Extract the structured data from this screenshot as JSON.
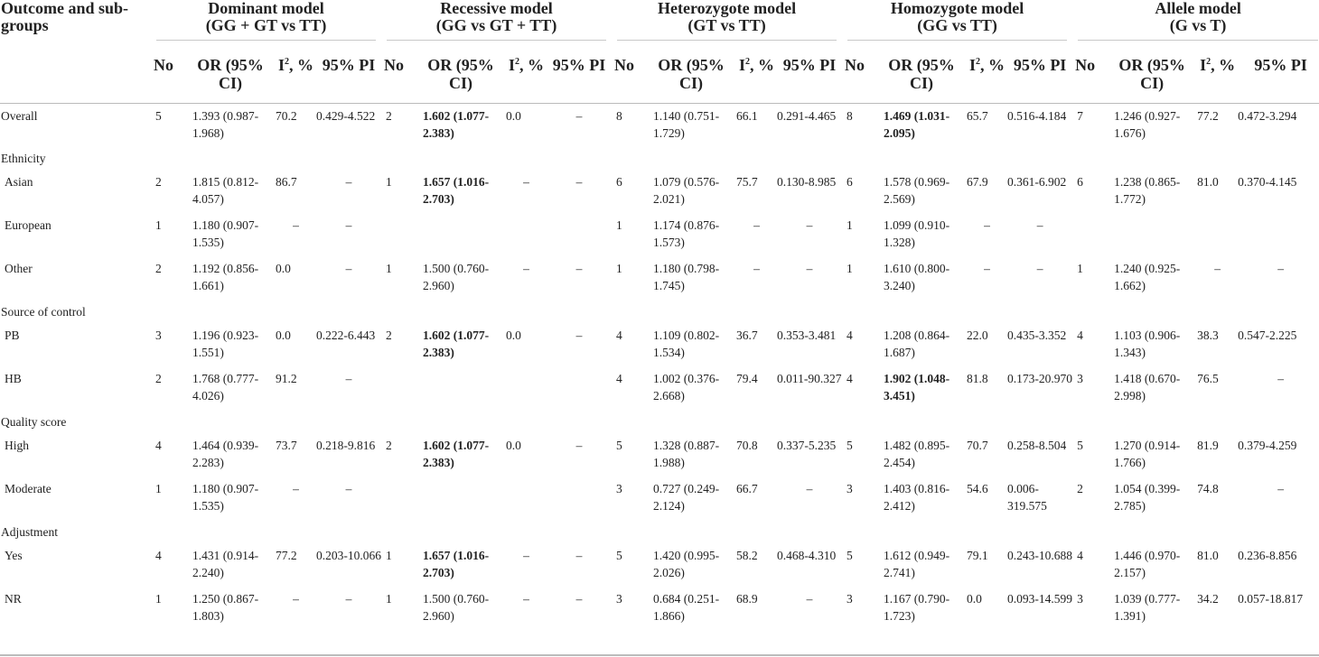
{
  "header": {
    "outcome_label": "Outcome and sub-groups",
    "models": [
      {
        "name": "Dominant model",
        "comparison": "(GG + GT vs TT)"
      },
      {
        "name": "Recessive model",
        "comparison": "(GG vs GT + TT)"
      },
      {
        "name": "Heterozygote model",
        "comparison": "(GT vs TT)"
      },
      {
        "name": "Homozygote model",
        "comparison": "(GG vs TT)"
      },
      {
        "name": "Allele model",
        "comparison": "(G vs T)"
      }
    ],
    "cols": {
      "no": "No",
      "or": "OR (95% CI)",
      "i2": "I",
      "i2_sup": "2",
      "i2_unit": ", %",
      "pi": "95% PI"
    }
  },
  "groups": [
    {
      "name": "Overall",
      "rows": [
        {
          "label": "Overall",
          "cells": [
            {
              "no": "5",
              "or": "1.393 (0.987-1.968)",
              "i2": "70.2",
              "pi": "0.429-4.522"
            },
            {
              "no": "2",
              "or": "1.602 (1.077-2.383)",
              "bold": true,
              "i2": "0.0",
              "pi": "–"
            },
            {
              "no": "8",
              "or": "1.140 (0.751-1.729)",
              "i2": "66.1",
              "pi": "0.291-4.465"
            },
            {
              "no": "8",
              "or": "1.469 (1.031-2.095)",
              "bold": true,
              "i2": "65.7",
              "pi": "0.516-4.184"
            },
            {
              "no": "7",
              "or": "1.246 (0.927-1.676)",
              "i2": "77.2",
              "pi": "0.472-3.294"
            }
          ]
        }
      ]
    },
    {
      "name": "Ethnicity",
      "rows": [
        {
          "label": "Asian",
          "cells": [
            {
              "no": "2",
              "or": "1.815 (0.812-4.057)",
              "i2": "86.7",
              "pi": "–"
            },
            {
              "no": "1",
              "or": "1.657 (1.016-2.703)",
              "bold": true,
              "i2": "–",
              "pi": "–"
            },
            {
              "no": "6",
              "or": "1.079 (0.576-2.021)",
              "i2": "75.7",
              "pi": "0.130-8.985"
            },
            {
              "no": "6",
              "or": "1.578 (0.969-2.569)",
              "i2": "67.9",
              "pi": "0.361-6.902"
            },
            {
              "no": "6",
              "or": "1.238 (0.865-1.772)",
              "i2": "81.0",
              "pi": "0.370-4.145"
            }
          ]
        },
        {
          "label": "European",
          "cells": [
            {
              "no": "1",
              "or": "1.180 (0.907-1.535)",
              "i2": "–",
              "pi": "–"
            },
            {
              "no": "",
              "or": "",
              "i2": "",
              "pi": ""
            },
            {
              "no": "1",
              "or": "1.174 (0.876-1.573)",
              "i2": "–",
              "pi": "–"
            },
            {
              "no": "1",
              "or": "1.099 (0.910-1.328)",
              "i2": "–",
              "pi": "–"
            },
            {
              "no": "",
              "or": "",
              "i2": "",
              "pi": ""
            }
          ]
        },
        {
          "label": "Other",
          "cells": [
            {
              "no": "2",
              "or": "1.192 (0.856-1.661)",
              "i2": "0.0",
              "pi": "–"
            },
            {
              "no": "1",
              "or": "1.500 (0.760-2.960)",
              "i2": "–",
              "pi": "–"
            },
            {
              "no": "1",
              "or": "1.180 (0.798-1.745)",
              "i2": "–",
              "pi": "–"
            },
            {
              "no": "1",
              "or": "1.610 (0.800-3.240)",
              "i2": "–",
              "pi": "–"
            },
            {
              "no": "1",
              "or": "1.240 (0.925-1.662)",
              "i2": "–",
              "pi": "–"
            }
          ]
        }
      ]
    },
    {
      "name": "Source of control",
      "rows": [
        {
          "label": "PB",
          "cells": [
            {
              "no": "3",
              "or": "1.196 (0.923-1.551)",
              "i2": "0.0",
              "pi": "0.222-6.443"
            },
            {
              "no": "2",
              "or": "1.602 (1.077-2.383)",
              "bold": true,
              "i2": "0.0",
              "pi": "–"
            },
            {
              "no": "4",
              "or": "1.109 (0.802-1.534)",
              "i2": "36.7",
              "pi": "0.353-3.481"
            },
            {
              "no": "4",
              "or": "1.208 (0.864-1.687)",
              "i2": "22.0",
              "pi": "0.435-3.352"
            },
            {
              "no": "4",
              "or": "1.103 (0.906-1.343)",
              "i2": "38.3",
              "pi": "0.547-2.225"
            }
          ]
        },
        {
          "label": "HB",
          "cells": [
            {
              "no": "2",
              "or": "1.768 (0.777-4.026)",
              "i2": "91.2",
              "pi": "–"
            },
            {
              "no": "",
              "or": "",
              "i2": "",
              "pi": ""
            },
            {
              "no": "4",
              "or": "1.002 (0.376-2.668)",
              "i2": "79.4",
              "pi": "0.011-90.327"
            },
            {
              "no": "4",
              "or": "1.902 (1.048-3.451)",
              "bold": true,
              "i2": "81.8",
              "pi": "0.173-20.970"
            },
            {
              "no": "3",
              "or": "1.418 (0.670-2.998)",
              "i2": "76.5",
              "pi": "–"
            }
          ]
        }
      ]
    },
    {
      "name": "Quality score",
      "rows": [
        {
          "label": "High",
          "cells": [
            {
              "no": "4",
              "or": "1.464 (0.939-2.283)",
              "i2": "73.7",
              "pi": "0.218-9.816"
            },
            {
              "no": "2",
              "or": "1.602 (1.077-2.383)",
              "bold": true,
              "i2": "0.0",
              "pi": "–"
            },
            {
              "no": "5",
              "or": "1.328 (0.887-1.988)",
              "i2": "70.8",
              "pi": "0.337-5.235"
            },
            {
              "no": "5",
              "or": "1.482 (0.895-2.454)",
              "i2": "70.7",
              "pi": "0.258-8.504"
            },
            {
              "no": "5",
              "or": "1.270 (0.914-1.766)",
              "i2": "81.9",
              "pi": "0.379-4.259"
            }
          ]
        },
        {
          "label": "Moderate",
          "cells": [
            {
              "no": "1",
              "or": "1.180 (0.907-1.535)",
              "i2": "–",
              "pi": "–"
            },
            {
              "no": "",
              "or": "",
              "i2": "",
              "pi": ""
            },
            {
              "no": "3",
              "or": "0.727 (0.249-2.124)",
              "i2": "66.7",
              "pi": "–"
            },
            {
              "no": "3",
              "or": "1.403 (0.816-2.412)",
              "i2": "54.6",
              "pi": "0.006-319.575"
            },
            {
              "no": "2",
              "or": "1.054 (0.399-2.785)",
              "i2": "74.8",
              "pi": "–"
            }
          ]
        }
      ]
    },
    {
      "name": "Adjustment",
      "rows": [
        {
          "label": "Yes",
          "cells": [
            {
              "no": "4",
              "or": "1.431 (0.914-2.240)",
              "i2": "77.2",
              "pi": "0.203-10.066"
            },
            {
              "no": "1",
              "or": "1.657 (1.016-2.703)",
              "bold": true,
              "i2": "–",
              "pi": "–"
            },
            {
              "no": "5",
              "or": "1.420 (0.995-2.026)",
              "i2": "58.2",
              "pi": "0.468-4.310"
            },
            {
              "no": "5",
              "or": "1.612 (0.949-2.741)",
              "i2": "79.1",
              "pi": "0.243-10.688"
            },
            {
              "no": "4",
              "or": "1.446 (0.970-2.157)",
              "i2": "81.0",
              "pi": "0.236-8.856"
            }
          ]
        },
        {
          "label": "NR",
          "cells": [
            {
              "no": "1",
              "or": "1.250 (0.867-1.803)",
              "i2": "–",
              "pi": "–"
            },
            {
              "no": "1",
              "or": "1.500 (0.760-2.960)",
              "i2": "–",
              "pi": "–"
            },
            {
              "no": "3",
              "or": "0.684 (0.251-1.866)",
              "i2": "68.9",
              "pi": "–"
            },
            {
              "no": "3",
              "or": "1.167 (0.790-1.723)",
              "i2": "0.0",
              "pi": "0.093-14.599"
            },
            {
              "no": "3",
              "or": "1.039 (0.777-1.391)",
              "i2": "34.2",
              "pi": "0.057-18.817"
            }
          ]
        }
      ]
    }
  ]
}
